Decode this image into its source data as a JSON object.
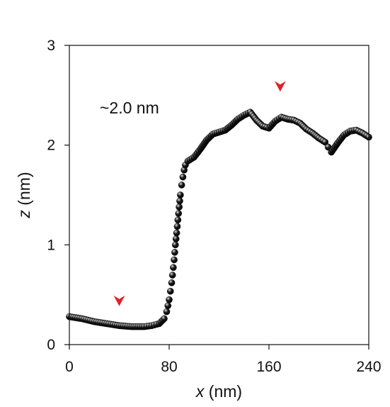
{
  "chart_data": {
    "type": "scatter",
    "title": "",
    "xlabel": "x (nm)",
    "ylabel": "z (nm)",
    "xlabel_var": "x",
    "xlabel_unit": " (nm)",
    "ylabel_var": "z",
    "ylabel_unit": " (nm)",
    "xlim": [
      0,
      240
    ],
    "ylim": [
      0,
      3
    ],
    "xticks": [
      0,
      80,
      160,
      240
    ],
    "yticks": [
      0,
      1,
      2,
      3
    ],
    "xtick_labels": [
      "0",
      "80",
      "160",
      "240"
    ],
    "ytick_labels": [
      "0",
      "1",
      "2",
      "3"
    ],
    "grid": false,
    "legend": "none",
    "marker_color": "#1a1a1a",
    "annotation": {
      "text": "~2.0 nm",
      "arrow_color": "#e0202a",
      "arrows": [
        {
          "x": 40,
          "y": 0.4
        },
        {
          "x": 169,
          "y": 2.55
        }
      ]
    },
    "series": [
      {
        "x": [
          0,
          10,
          20,
          30,
          40,
          50,
          60,
          66,
          72,
          76,
          78,
          80,
          82,
          84,
          85,
          86,
          87,
          88,
          89,
          90,
          91,
          92,
          93,
          95,
          100,
          105,
          110,
          115,
          120,
          125,
          130,
          135,
          140,
          145,
          150,
          155,
          160,
          165,
          170,
          175,
          180,
          185,
          190,
          195,
          200,
          205,
          210,
          215,
          220,
          225,
          230,
          235,
          240
        ],
        "y": [
          0.28,
          0.26,
          0.23,
          0.21,
          0.19,
          0.18,
          0.18,
          0.19,
          0.21,
          0.26,
          0.33,
          0.45,
          0.62,
          0.85,
          1.0,
          1.12,
          1.25,
          1.38,
          1.5,
          1.6,
          1.68,
          1.75,
          1.8,
          1.84,
          1.88,
          1.96,
          2.05,
          2.11,
          2.13,
          2.15,
          2.2,
          2.26,
          2.3,
          2.33,
          2.25,
          2.19,
          2.17,
          2.24,
          2.28,
          2.26,
          2.25,
          2.22,
          2.16,
          2.12,
          2.07,
          2.03,
          1.93,
          2.02,
          2.1,
          2.14,
          2.15,
          2.12,
          2.08
        ]
      }
    ]
  }
}
